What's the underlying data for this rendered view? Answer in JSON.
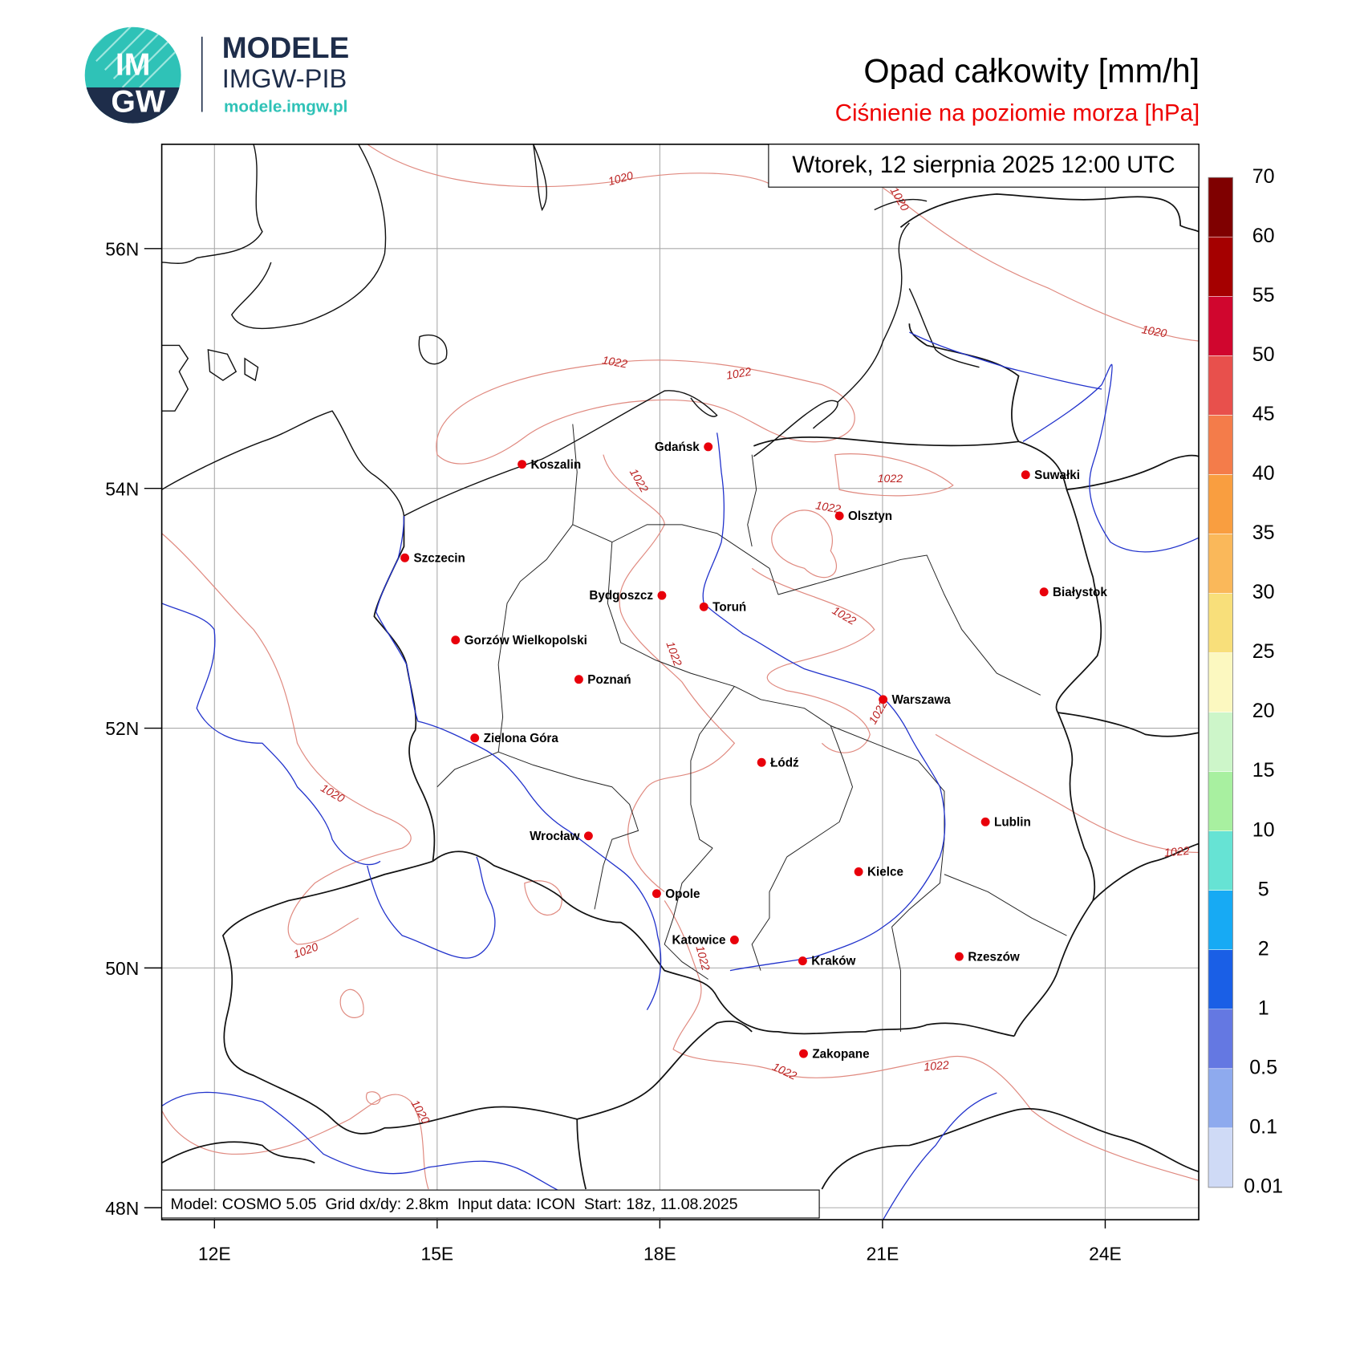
{
  "header": {
    "logo_top": "IM",
    "logo_bottom": "GW",
    "brand": "MODELE",
    "org": "IMGW-PIB",
    "url": "modele.imgw.pl",
    "title": "Opad całkowity [mm/h]",
    "subtitle": "Ciśnienie na poziomie morza [hPa]"
  },
  "map": {
    "valid_time": "Wtorek, 12 sierpnia 2025 12:00 UTC",
    "footer": "Model: COSMO 5.05  Grid dx/dy: 2.8km  Input data: ICON  Start: 18z, 11.08.2025",
    "xlim": [
      11.29,
      25.26
    ],
    "ylim": [
      47.9,
      56.87
    ],
    "xticks": [
      {
        "value": 12,
        "label": "12E"
      },
      {
        "value": 15,
        "label": "15E"
      },
      {
        "value": 18,
        "label": "18E"
      },
      {
        "value": 21,
        "label": "21E"
      },
      {
        "value": 24,
        "label": "24E"
      }
    ],
    "yticks": [
      {
        "value": 48,
        "label": "48N"
      },
      {
        "value": 50,
        "label": "50N"
      },
      {
        "value": 52,
        "label": "52N"
      },
      {
        "value": 54,
        "label": "54N"
      },
      {
        "value": 56,
        "label": "56N"
      }
    ],
    "grid": true,
    "city_color": "#e8000b",
    "isobar_color": "#e08a80",
    "cities": [
      "Gdańsk",
      "Koszalin",
      "Suwałki",
      "Olsztyn",
      "Szczecin",
      "Bydgoszcz",
      "Toruń",
      "Białystok",
      "Gorzów Wielkopolski",
      "Poznań",
      "Warszawa",
      "Zielona Góra",
      "Łódź",
      "Lublin",
      "Wrocław",
      "Kielce",
      "Opole",
      "Katowice",
      "Kraków",
      "Rzeszów",
      "Zakopane"
    ],
    "isobar_labels": [
      1020,
      1020,
      1020,
      1022,
      1022,
      1022,
      1022,
      1022,
      1022,
      1022,
      1022,
      1020,
      1022,
      1020,
      1022,
      1022,
      1022,
      1020
    ]
  },
  "colorbar": {
    "levels": [
      0.01,
      0.1,
      0.5,
      1,
      2,
      5,
      10,
      15,
      20,
      25,
      30,
      35,
      40,
      45,
      50,
      55,
      60,
      70
    ],
    "colors": [
      "#cfdaf6",
      "#8eaaee",
      "#6478e2",
      "#1a5fe6",
      "#17aaf4",
      "#66e3d4",
      "#a8f0a0",
      "#cdf6c9",
      "#fcf8c0",
      "#f8df7a",
      "#fab85a",
      "#f99e40",
      "#f47c4a",
      "#e8504c",
      "#d0062e",
      "#a50000",
      "#7f0000"
    ]
  }
}
